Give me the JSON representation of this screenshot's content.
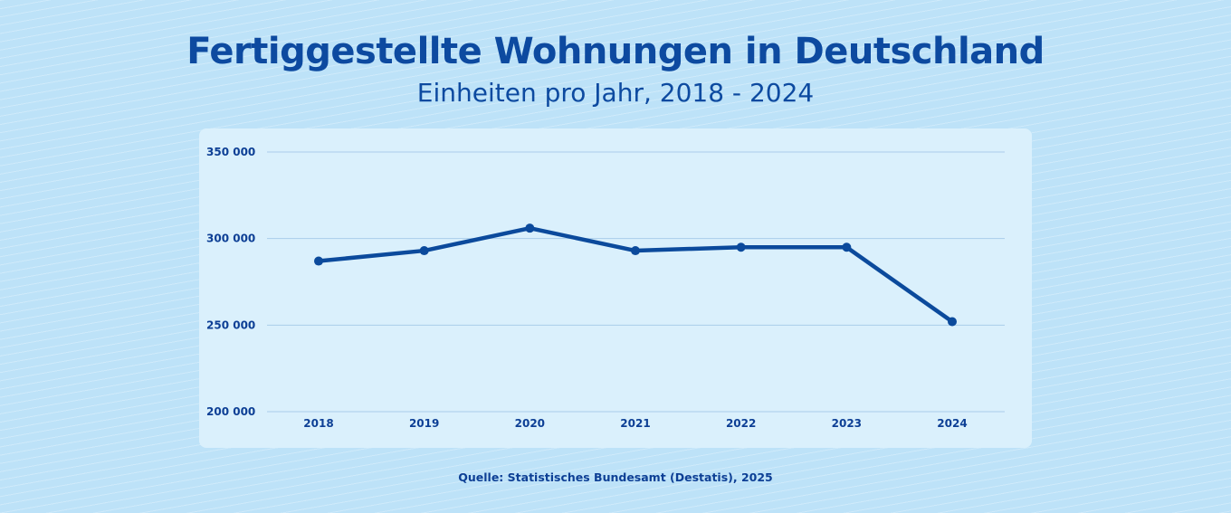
{
  "header": {
    "title": "Fertiggestellte Wohnungen in Deutschland",
    "subtitle": "Einheiten pro Jahr, 2018 - 2024"
  },
  "footer": {
    "source": "Quelle: Statistisches Bundesamt (Destatis), 2025"
  },
  "colors": {
    "line": "#0b4a9c",
    "grid": "#a9cdea",
    "panel": "#daf0fc",
    "text": "#0d3f95"
  },
  "chart_data": {
    "type": "line",
    "title": "Fertiggestellte Wohnungen in Deutschland",
    "subtitle": "Einheiten pro Jahr, 2018 - 2024",
    "categories": [
      "2018",
      "2019",
      "2020",
      "2021",
      "2022",
      "2023",
      "2024"
    ],
    "values": [
      287000,
      293000,
      306000,
      293000,
      295000,
      295000,
      252000
    ],
    "ylim": [
      200000,
      350000
    ],
    "yticks": [
      200000,
      250000,
      300000,
      350000
    ],
    "ytick_labels": [
      "200 000",
      "250 000",
      "300 000",
      "350 000"
    ],
    "grid": true,
    "markers": true
  }
}
